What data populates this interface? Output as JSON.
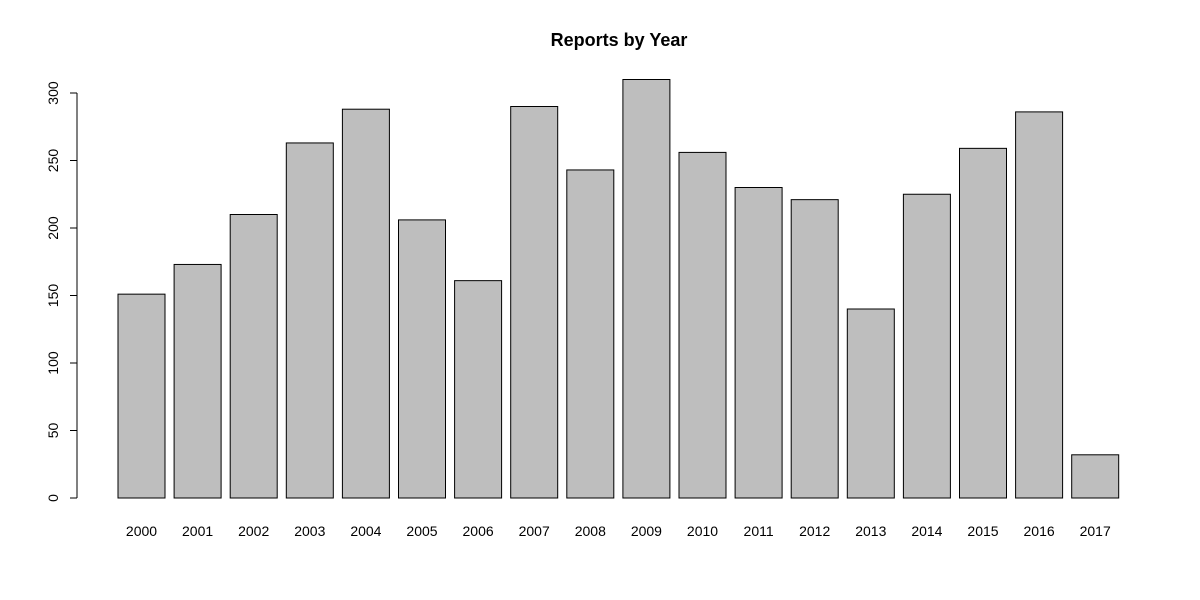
{
  "chart_data": {
    "type": "bar",
    "title": "Reports by Year",
    "xlabel": "",
    "ylabel": "",
    "categories": [
      "2000",
      "2001",
      "2002",
      "2003",
      "2004",
      "2005",
      "2006",
      "2007",
      "2008",
      "2009",
      "2010",
      "2011",
      "2012",
      "2013",
      "2014",
      "2015",
      "2016",
      "2017"
    ],
    "values": [
      151,
      173,
      210,
      263,
      288,
      206,
      161,
      290,
      243,
      310,
      256,
      230,
      221,
      140,
      225,
      259,
      286,
      32
    ],
    "ylim": [
      0,
      300
    ],
    "yticks": [
      "0",
      "50",
      "100",
      "150",
      "200",
      "250",
      "300"
    ],
    "grid": false,
    "legend": "none",
    "colors": {
      "bar_fill": "#bebebe",
      "bar_stroke": "#000000"
    }
  }
}
